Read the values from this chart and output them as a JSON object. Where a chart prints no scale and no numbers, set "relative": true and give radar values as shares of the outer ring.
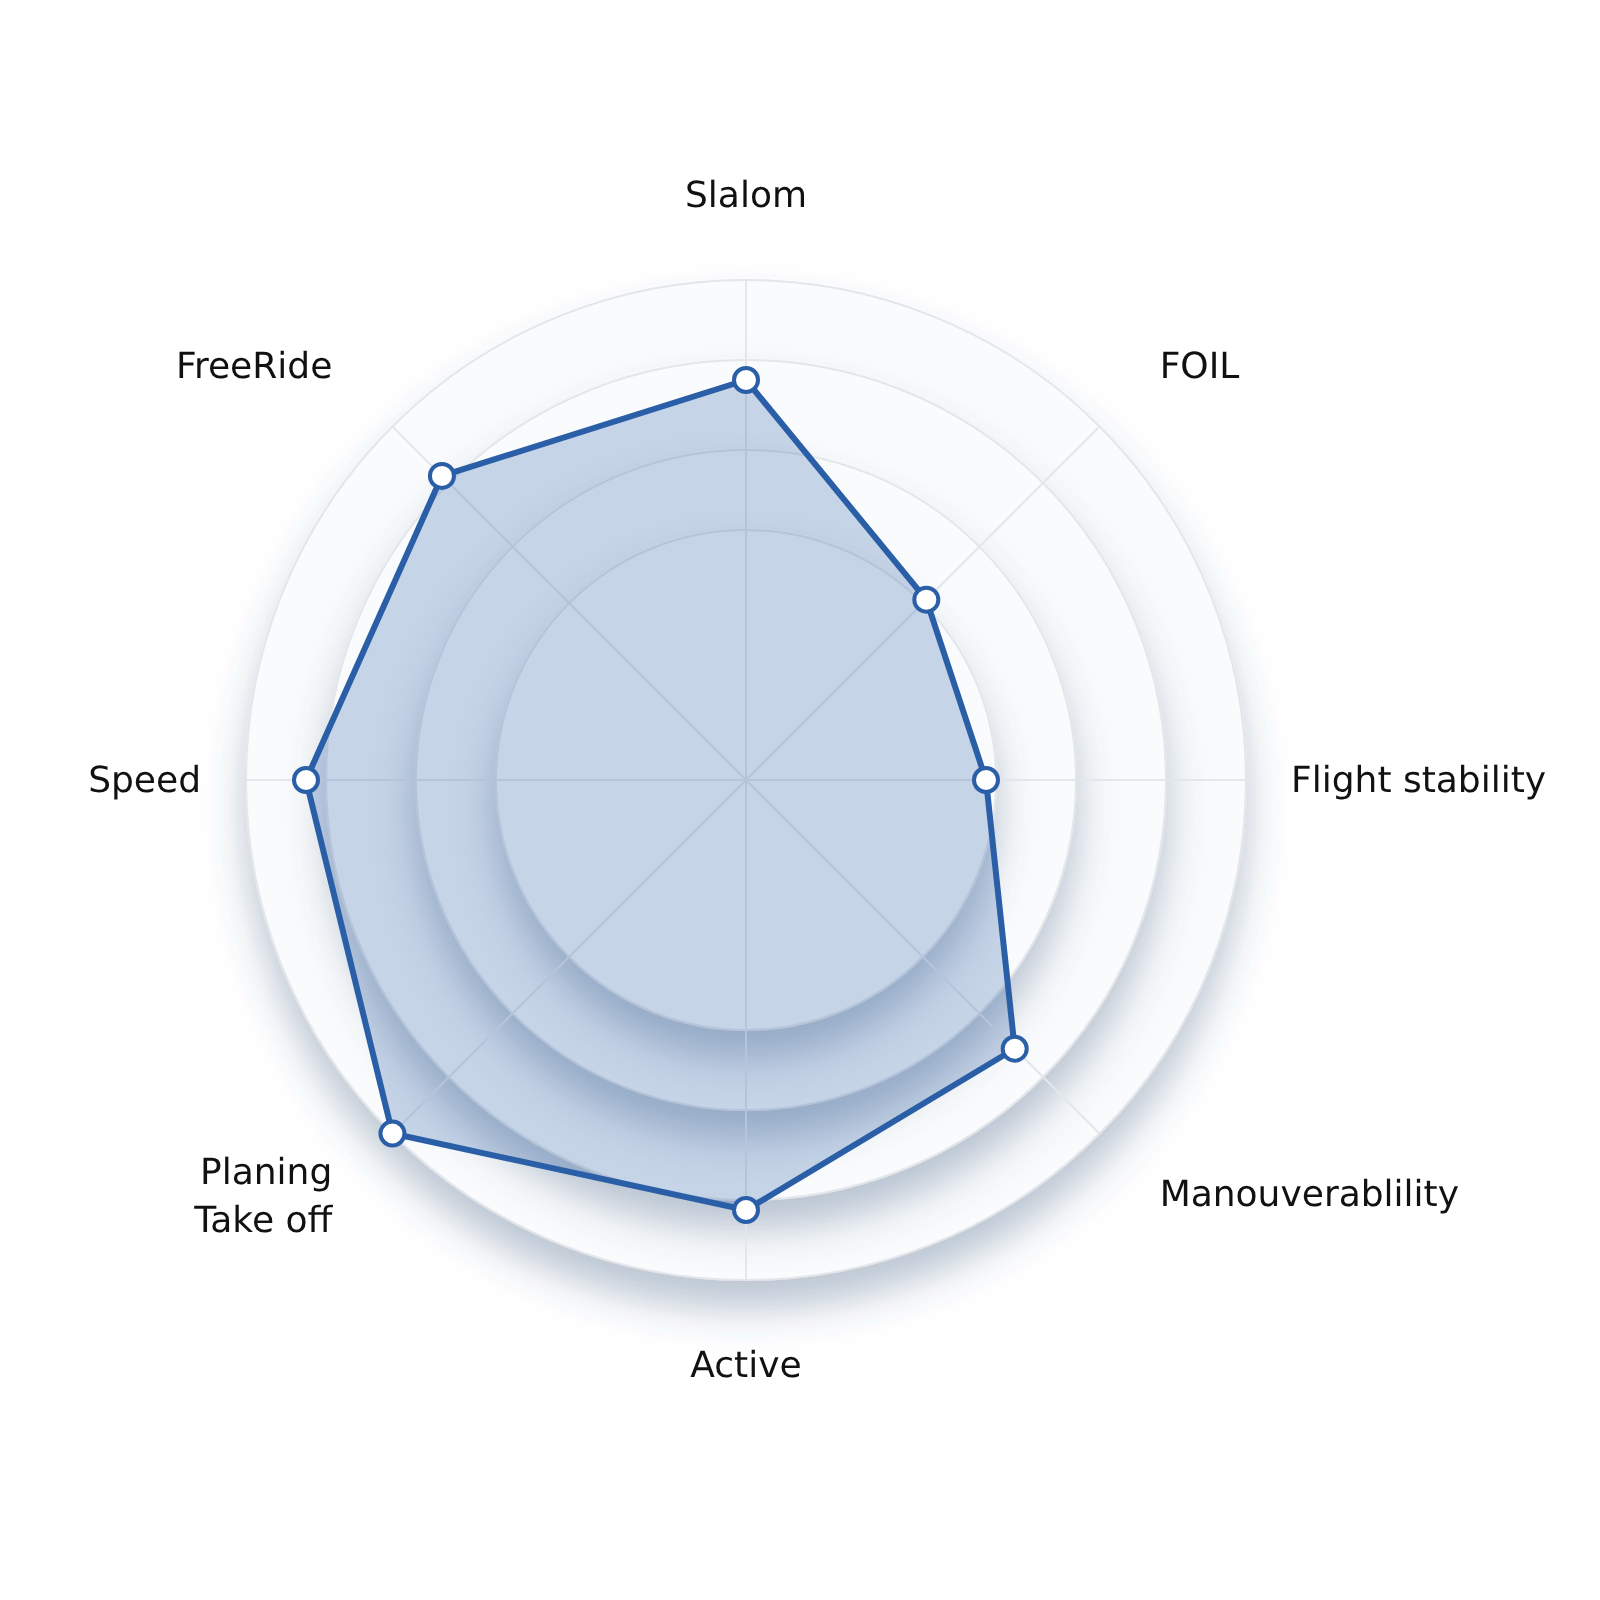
{
  "chart_data": {
    "type": "radar",
    "relative": true,
    "grid": true,
    "marker": "circle",
    "categories": [
      "Slalom",
      "FOIL",
      "Flight stability",
      "Manouverablility",
      "Active",
      "Planing\nTake off",
      "Speed",
      "FreeRide"
    ],
    "series": [
      {
        "color": "#2a5fa8",
        "values": [
          0.8,
          0.51,
          0.48,
          0.76,
          0.86,
          1.0,
          0.88,
          0.86
        ]
      }
    ]
  }
}
